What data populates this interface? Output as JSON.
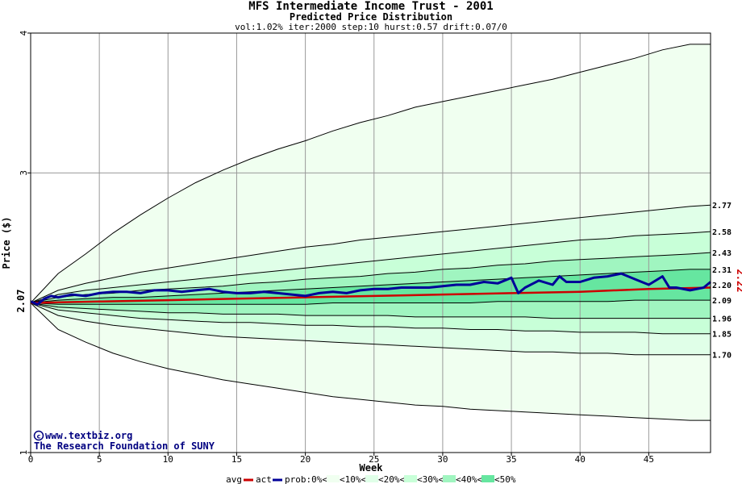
{
  "chart_data": {
    "type": "line",
    "title": "MFS Intermediate Income Trust - 2001",
    "subtitle": "Predicted Price Distribution",
    "params": "vol:1.02% iter:2000 step:10 hurst:0.57 drift:0.07/0",
    "xlabel": "Week",
    "ylabel": "Price ($)",
    "xlim": [
      0,
      49.5
    ],
    "ylim": [
      1,
      4
    ],
    "x_ticks": [
      0,
      5,
      10,
      15,
      20,
      25,
      30,
      35,
      40,
      45
    ],
    "y_ticks": [
      1,
      3,
      4
    ],
    "start_value": "2.07",
    "last_value": "2.22",
    "grid": true,
    "credit_line1": "www.textbiz.org",
    "credit_line2": "The Research Foundation of SUNY",
    "percentile_bands": [
      {
        "label": "<10%",
        "color": "#f0fff0",
        "upper": [
          2.07,
          2.28,
          2.42,
          2.57,
          2.7,
          2.82,
          2.93,
          3.02,
          3.1,
          3.17,
          3.23,
          3.3,
          3.36,
          3.41,
          3.47,
          3.51,
          3.55,
          3.59,
          3.63,
          3.67,
          3.72,
          3.77,
          3.82,
          3.88,
          3.92,
          3.92
        ],
        "lower": [
          2.07,
          1.88,
          1.79,
          1.71,
          1.65,
          1.6,
          1.56,
          1.52,
          1.49,
          1.46,
          1.43,
          1.4,
          1.38,
          1.36,
          1.34,
          1.33,
          1.31,
          1.3,
          1.29,
          1.28,
          1.27,
          1.26,
          1.25,
          1.24,
          1.23,
          1.23
        ]
      },
      {
        "label": "<20%",
        "color": "#e0ffe8",
        "upper": [
          2.07,
          2.16,
          2.21,
          2.25,
          2.29,
          2.32,
          2.35,
          2.38,
          2.41,
          2.44,
          2.47,
          2.49,
          2.52,
          2.54,
          2.56,
          2.58,
          2.6,
          2.62,
          2.64,
          2.66,
          2.68,
          2.7,
          2.72,
          2.74,
          2.76,
          2.77
        ],
        "lower": [
          2.07,
          1.98,
          1.94,
          1.91,
          1.89,
          1.87,
          1.85,
          1.83,
          1.82,
          1.81,
          1.8,
          1.79,
          1.78,
          1.77,
          1.76,
          1.75,
          1.74,
          1.73,
          1.72,
          1.72,
          1.71,
          1.71,
          1.7,
          1.7,
          1.7,
          1.7
        ]
      },
      {
        "label": "<30%",
        "color": "#c8ffd8",
        "upper": [
          2.07,
          2.13,
          2.16,
          2.18,
          2.2,
          2.22,
          2.24,
          2.26,
          2.28,
          2.3,
          2.32,
          2.34,
          2.36,
          2.38,
          2.4,
          2.42,
          2.44,
          2.46,
          2.48,
          2.5,
          2.52,
          2.53,
          2.55,
          2.56,
          2.57,
          2.58
        ],
        "lower": [
          2.07,
          2.02,
          2.0,
          1.98,
          1.96,
          1.95,
          1.94,
          1.93,
          1.93,
          1.92,
          1.91,
          1.91,
          1.9,
          1.9,
          1.89,
          1.89,
          1.88,
          1.88,
          1.87,
          1.87,
          1.86,
          1.86,
          1.86,
          1.85,
          1.85,
          1.85
        ]
      },
      {
        "label": "<40%",
        "color": "#a0f5c0",
        "upper": [
          2.07,
          2.11,
          2.13,
          2.14,
          2.16,
          2.17,
          2.18,
          2.19,
          2.21,
          2.22,
          2.24,
          2.25,
          2.26,
          2.28,
          2.29,
          2.31,
          2.32,
          2.34,
          2.35,
          2.37,
          2.38,
          2.39,
          2.4,
          2.41,
          2.42,
          2.43
        ],
        "lower": [
          2.07,
          2.04,
          2.03,
          2.02,
          2.01,
          2.0,
          2.0,
          1.99,
          1.99,
          1.99,
          1.98,
          1.98,
          1.98,
          1.98,
          1.97,
          1.97,
          1.97,
          1.97,
          1.97,
          1.96,
          1.96,
          1.96,
          1.96,
          1.96,
          1.96,
          1.96
        ]
      },
      {
        "label": "<50%",
        "color": "#66e6a0",
        "upper": [
          2.07,
          2.09,
          2.1,
          2.11,
          2.11,
          2.12,
          2.13,
          2.14,
          2.15,
          2.16,
          2.17,
          2.18,
          2.19,
          2.2,
          2.21,
          2.22,
          2.23,
          2.24,
          2.25,
          2.26,
          2.27,
          2.28,
          2.29,
          2.3,
          2.31,
          2.31
        ],
        "lower": [
          2.07,
          2.06,
          2.06,
          2.06,
          2.06,
          2.06,
          2.06,
          2.06,
          2.06,
          2.06,
          2.06,
          2.07,
          2.07,
          2.07,
          2.07,
          2.07,
          2.07,
          2.08,
          2.08,
          2.08,
          2.08,
          2.08,
          2.09,
          2.09,
          2.09,
          2.09
        ]
      }
    ],
    "band_x": [
      0,
      2,
      4,
      6,
      8,
      10,
      12,
      14,
      16,
      18,
      20,
      22,
      24,
      26,
      28,
      30,
      32,
      34,
      36,
      38,
      40,
      42,
      44,
      46,
      48,
      49.5
    ],
    "right_levels": [
      "2.77",
      "2.58",
      "2.43",
      "2.31",
      "2.20",
      "2.09",
      "1.96",
      "1.85",
      "1.70"
    ],
    "series": [
      {
        "name": "avg",
        "color": "#cc0000",
        "x": [
          0,
          5,
          10,
          15,
          20,
          25,
          30,
          35,
          40,
          45,
          49.5
        ],
        "values": [
          2.07,
          2.08,
          2.09,
          2.1,
          2.11,
          2.12,
          2.13,
          2.14,
          2.15,
          2.17,
          2.18
        ]
      },
      {
        "name": "act",
        "color": "#000099",
        "x": [
          0,
          0.5,
          1,
          1.5,
          2,
          3,
          4,
          5,
          6,
          7,
          8,
          9,
          10,
          11,
          12,
          13,
          14,
          15,
          16,
          17,
          18,
          19,
          20,
          21,
          22,
          23,
          24,
          25,
          26,
          27,
          28,
          29,
          30,
          31,
          32,
          33,
          34,
          35,
          35.5,
          36,
          37,
          38,
          38.5,
          39,
          40,
          41,
          42,
          43,
          44,
          45,
          46,
          46.5,
          47,
          48,
          49,
          49.5
        ],
        "values": [
          2.08,
          2.06,
          2.1,
          2.12,
          2.11,
          2.13,
          2.12,
          2.14,
          2.15,
          2.15,
          2.14,
          2.16,
          2.16,
          2.15,
          2.16,
          2.17,
          2.15,
          2.14,
          2.14,
          2.15,
          2.14,
          2.13,
          2.12,
          2.14,
          2.15,
          2.14,
          2.16,
          2.17,
          2.17,
          2.18,
          2.18,
          2.18,
          2.19,
          2.2,
          2.2,
          2.22,
          2.21,
          2.25,
          2.14,
          2.18,
          2.23,
          2.2,
          2.26,
          2.22,
          2.22,
          2.25,
          2.26,
          2.28,
          2.24,
          2.2,
          2.26,
          2.18,
          2.18,
          2.16,
          2.18,
          2.22
        ]
      }
    ]
  },
  "legend": {
    "avg": "avg",
    "act": "act",
    "prob": "prob:0%<",
    "b10": "<10%<",
    "b20": "<20%<",
    "b30": "<30%<",
    "b40": "<40%<",
    "b50": "<50%"
  },
  "colors": {
    "avg": "#cc0000",
    "act": "#000099",
    "grid": "#999999"
  }
}
